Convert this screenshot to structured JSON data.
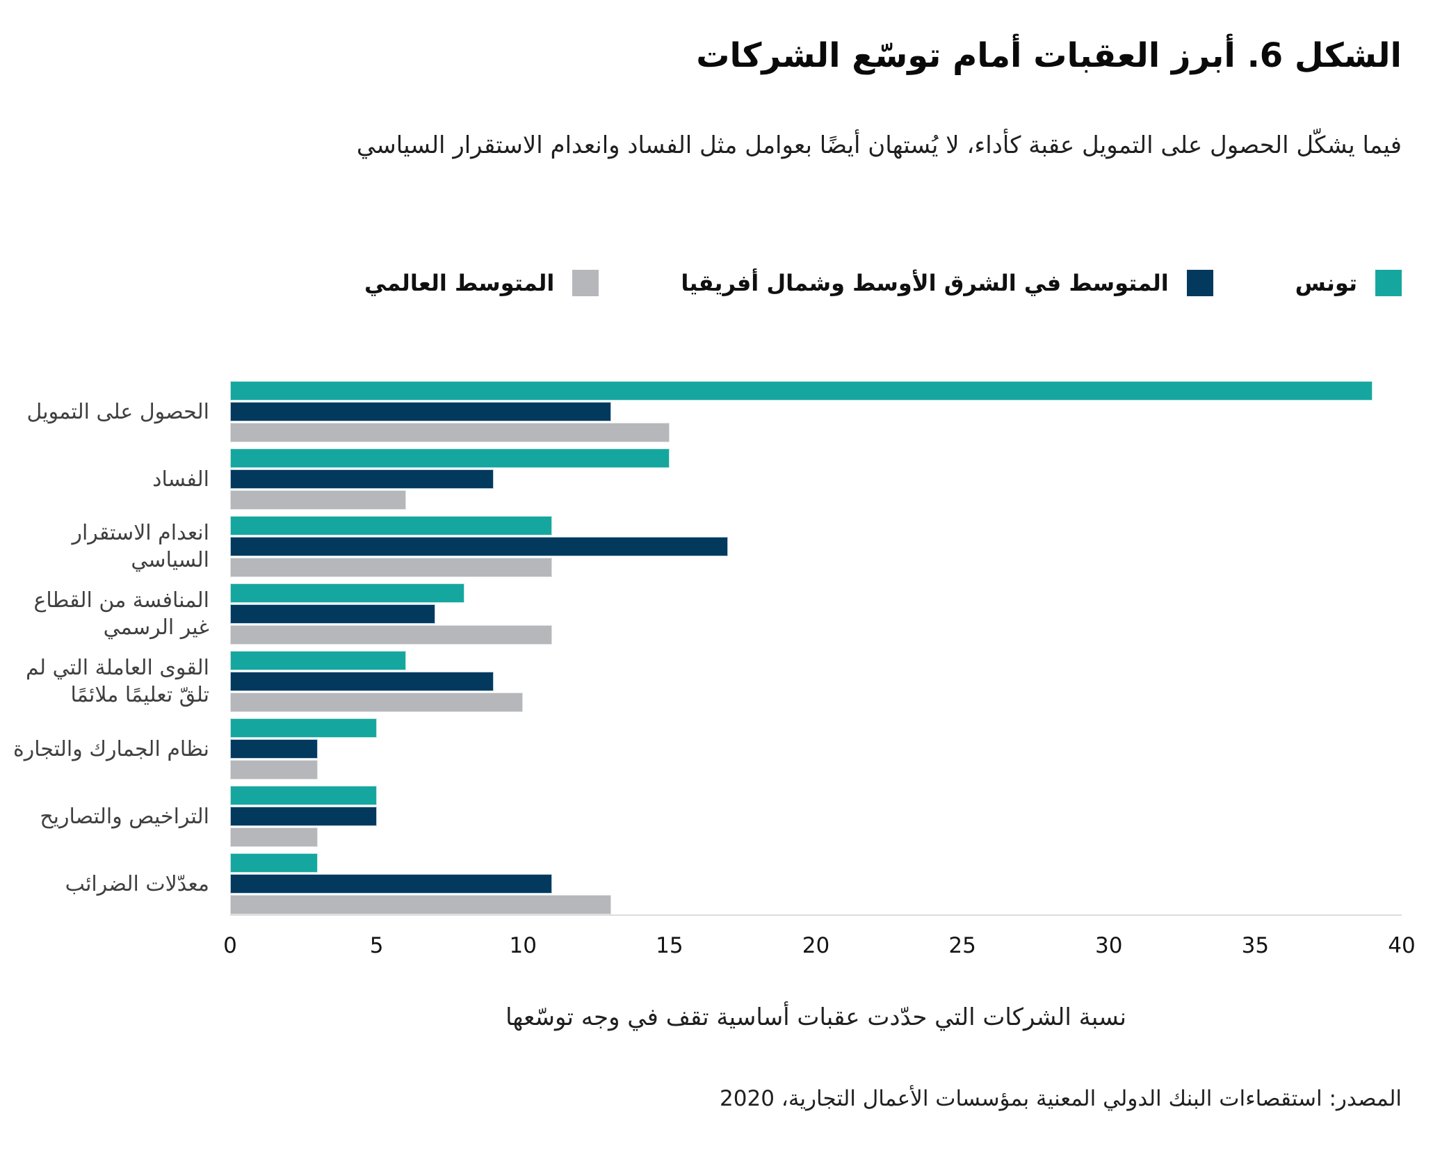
{
  "figure": {
    "title": "الشكل 6. أبرز العقبات أمام توسّع الشركات",
    "subtitle": "فيما يشكّل الحصول على التمويل عقبة كأداء، لا يُستهان أيضًا بعوامل مثل الفساد وانعدام الاستقرار السياسي",
    "source": "المصدر: استقصاءات البنك الدولي المعنية بمؤسسات الأعمال التجارية، 2020"
  },
  "colors": {
    "tunisia": "#15A79F",
    "mena": "#04395E",
    "world": "#B5B7BB",
    "axis_line": "#DCDCDC"
  },
  "chart_data": {
    "type": "bar",
    "orientation": "horizontal",
    "title": "الشكل 6. أبرز العقبات أمام توسّع الشركات",
    "xlabel": "نسبة الشركات التي حدّدت عقبات أساسية تقف في وجه توسّعها",
    "ylabel": "",
    "xlim": [
      0,
      40
    ],
    "xticks": [
      0,
      5,
      10,
      15,
      20,
      25,
      30,
      35,
      40
    ],
    "grid": false,
    "legend_position": "top",
    "categories": [
      "الحصول على التمويل",
      "الفساد",
      "انعدام الاستقرار السياسي",
      "المنافسة من القطاع غير الرسمي",
      "القوى العاملة التي لم تلقّ تعليمًا ملائمًا",
      "نظام الجمارك والتجارة",
      "التراخيص والتصاريح",
      "معدّلات الضرائب"
    ],
    "series": [
      {
        "name": "تونس",
        "color_key": "tunisia",
        "values": [
          39,
          15,
          11,
          8,
          6,
          5,
          5,
          3
        ]
      },
      {
        "name": "المتوسط في الشرق الأوسط وشمال أفريقيا",
        "color_key": "mena",
        "values": [
          13,
          9,
          17,
          7,
          9,
          3,
          5,
          11
        ]
      },
      {
        "name": "المتوسط العالمي",
        "color_key": "world",
        "values": [
          15,
          6,
          11,
          11,
          10,
          3,
          3,
          13
        ]
      }
    ]
  }
}
